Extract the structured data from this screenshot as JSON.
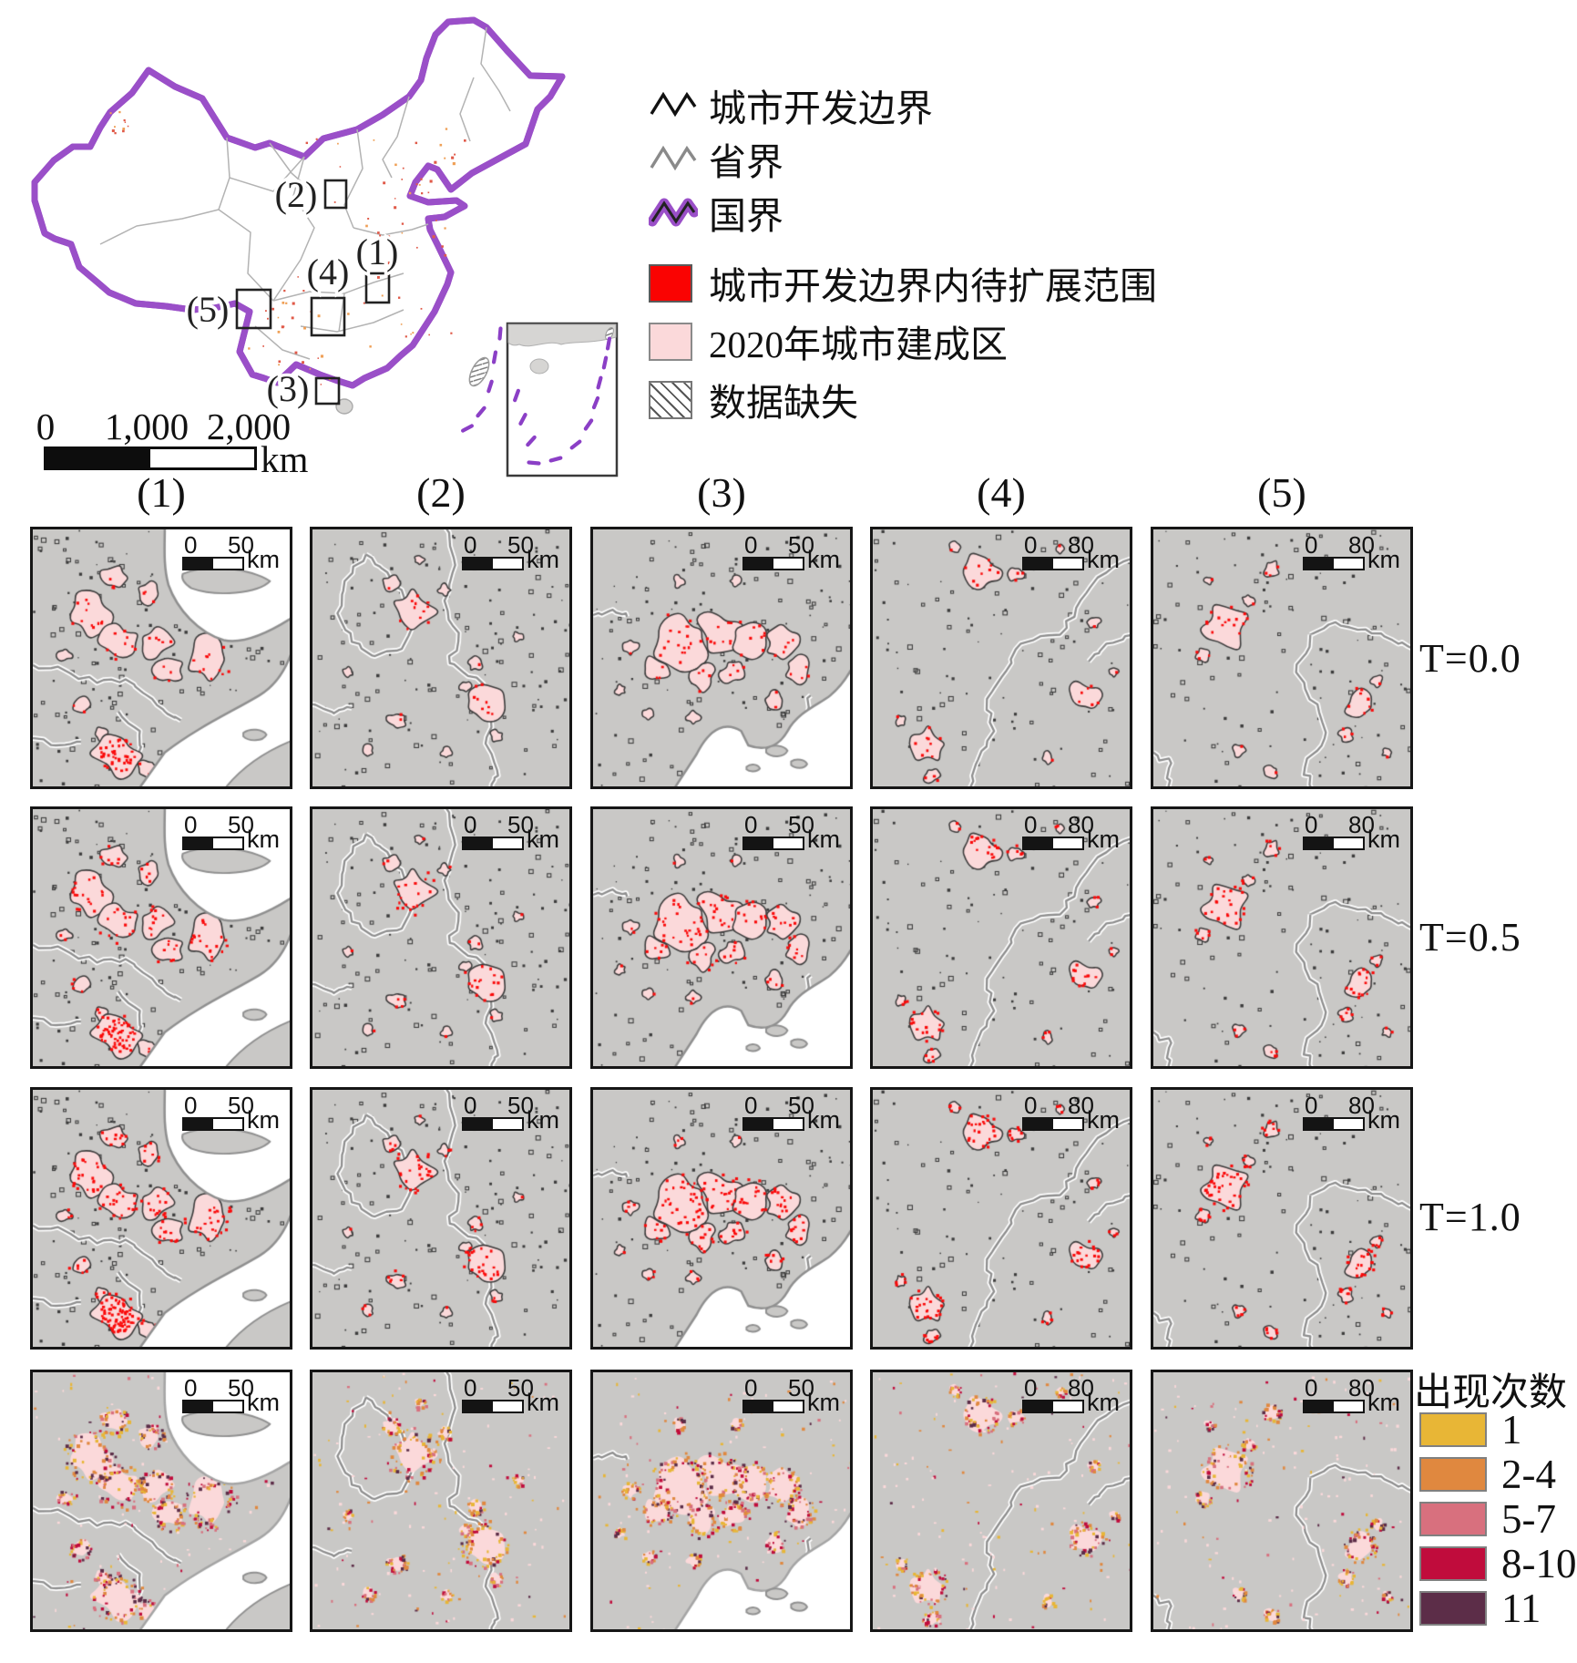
{
  "figure": {
    "overview": {
      "scalebar": {
        "t0": "0",
        "t1": "1,000",
        "t2": "2,000",
        "unit": "km"
      },
      "regions": [
        {
          "label": "(1)"
        },
        {
          "label": "(2)"
        },
        {
          "label": "(3)"
        },
        {
          "label": "(4)"
        },
        {
          "label": "(5)"
        }
      ]
    },
    "legend": {
      "line_items": [
        {
          "name": "urban-development-boundary",
          "label": "城市开发边界"
        },
        {
          "name": "province-boundary",
          "label": "省界"
        },
        {
          "name": "national-boundary",
          "label": "国界"
        }
      ],
      "fill_items": [
        {
          "name": "expansion-area-within-udb",
          "label": "城市开发边界内待扩展范围",
          "color": "#fa0302"
        },
        {
          "name": "builtup-area-2020",
          "label": "2020年城市建成区",
          "color": "#fbd9da"
        },
        {
          "name": "missing-data",
          "label": "数据缺失",
          "pattern": "hatch"
        }
      ]
    },
    "grid": {
      "scale_zero": "0",
      "scale_unit": "km",
      "columns": [
        {
          "label": "(1)",
          "scale_max": "50"
        },
        {
          "label": "(2)",
          "scale_max": "50"
        },
        {
          "label": "(3)",
          "scale_max": "50"
        },
        {
          "label": "(4)",
          "scale_max": "80"
        },
        {
          "label": "(5)",
          "scale_max": "80"
        }
      ],
      "rows": [
        {
          "label": "T=0.0"
        },
        {
          "label": "T=0.5"
        },
        {
          "label": "T=1.0"
        },
        {
          "label": ""
        }
      ]
    },
    "occurrence_legend": {
      "title": "出现次数",
      "classes": [
        {
          "label": "1",
          "color": "#e8b636"
        },
        {
          "label": "2-4",
          "color": "#e0883f"
        },
        {
          "label": "5-7",
          "color": "#d8707e"
        },
        {
          "label": "8-10",
          "color": "#c00c3c"
        },
        {
          "label": "11",
          "color": "#5c2d48"
        }
      ]
    },
    "colors": {
      "red": "#fa0a0a",
      "builtup_pink": "#fbd9da",
      "panel_land": "#c9c8c6",
      "map_land": "#d6d5d3",
      "water": "#ffffff",
      "dev_boundary": "#3c3c3c",
      "province_line": "#8f8f8f",
      "national_purple": "#9a4fc8"
    }
  }
}
